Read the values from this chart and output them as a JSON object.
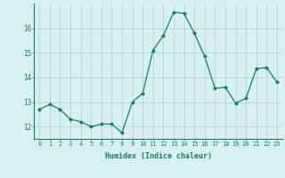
{
  "x": [
    0,
    1,
    2,
    3,
    4,
    5,
    6,
    7,
    8,
    9,
    10,
    11,
    12,
    13,
    14,
    15,
    16,
    17,
    18,
    19,
    20,
    21,
    22,
    23
  ],
  "y": [
    12.7,
    12.9,
    12.7,
    12.3,
    12.2,
    12.0,
    12.1,
    12.1,
    11.75,
    13.0,
    13.35,
    15.1,
    15.7,
    16.65,
    16.6,
    15.8,
    14.85,
    13.55,
    13.6,
    12.95,
    13.15,
    14.35,
    14.4,
    13.8
  ],
  "xlabel": "Humidex (Indice chaleur)",
  "ylabel": "",
  "line_color": "#1a7a6e",
  "marker": "D",
  "marker_size": 2.0,
  "bg_color": "#d9f0f0",
  "grid_color": "#aacfcf",
  "ylim": [
    11.5,
    17.0
  ],
  "yticks": [
    12,
    13,
    14,
    15,
    16
  ],
  "xlim": [
    -0.5,
    23.5
  ]
}
